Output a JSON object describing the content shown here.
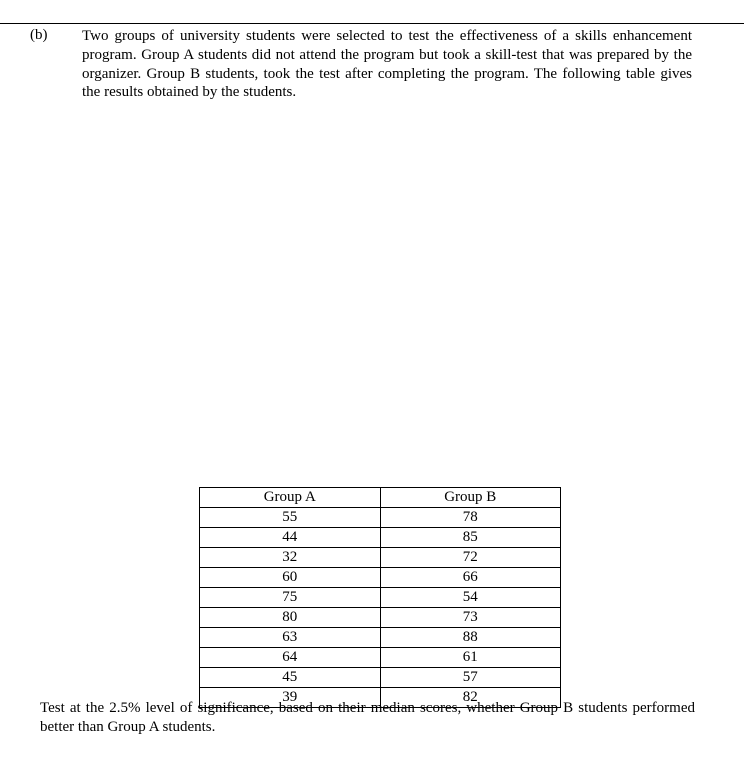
{
  "question": {
    "label": "(b)",
    "text": "Two groups of university students were selected to test the effectiveness of a skills enhancement program. Group A students did not attend the program but took a skill-test that was prepared by the organizer. Group B students, took the test after completing the program. The following table gives the results obtained by the students."
  },
  "table": {
    "columns": [
      "Group A",
      "Group B"
    ],
    "rows": [
      [
        "55",
        "78"
      ],
      [
        "44",
        "85"
      ],
      [
        "32",
        "72"
      ],
      [
        "60",
        "66"
      ],
      [
        "75",
        "54"
      ],
      [
        "80",
        "73"
      ],
      [
        "63",
        "88"
      ],
      [
        "64",
        "61"
      ],
      [
        "45",
        "57"
      ],
      [
        "39",
        "82"
      ]
    ]
  },
  "conclusion": "Test at the 2.5% level of significance, based on their median scores, whether Group B students performed better than Group A students."
}
